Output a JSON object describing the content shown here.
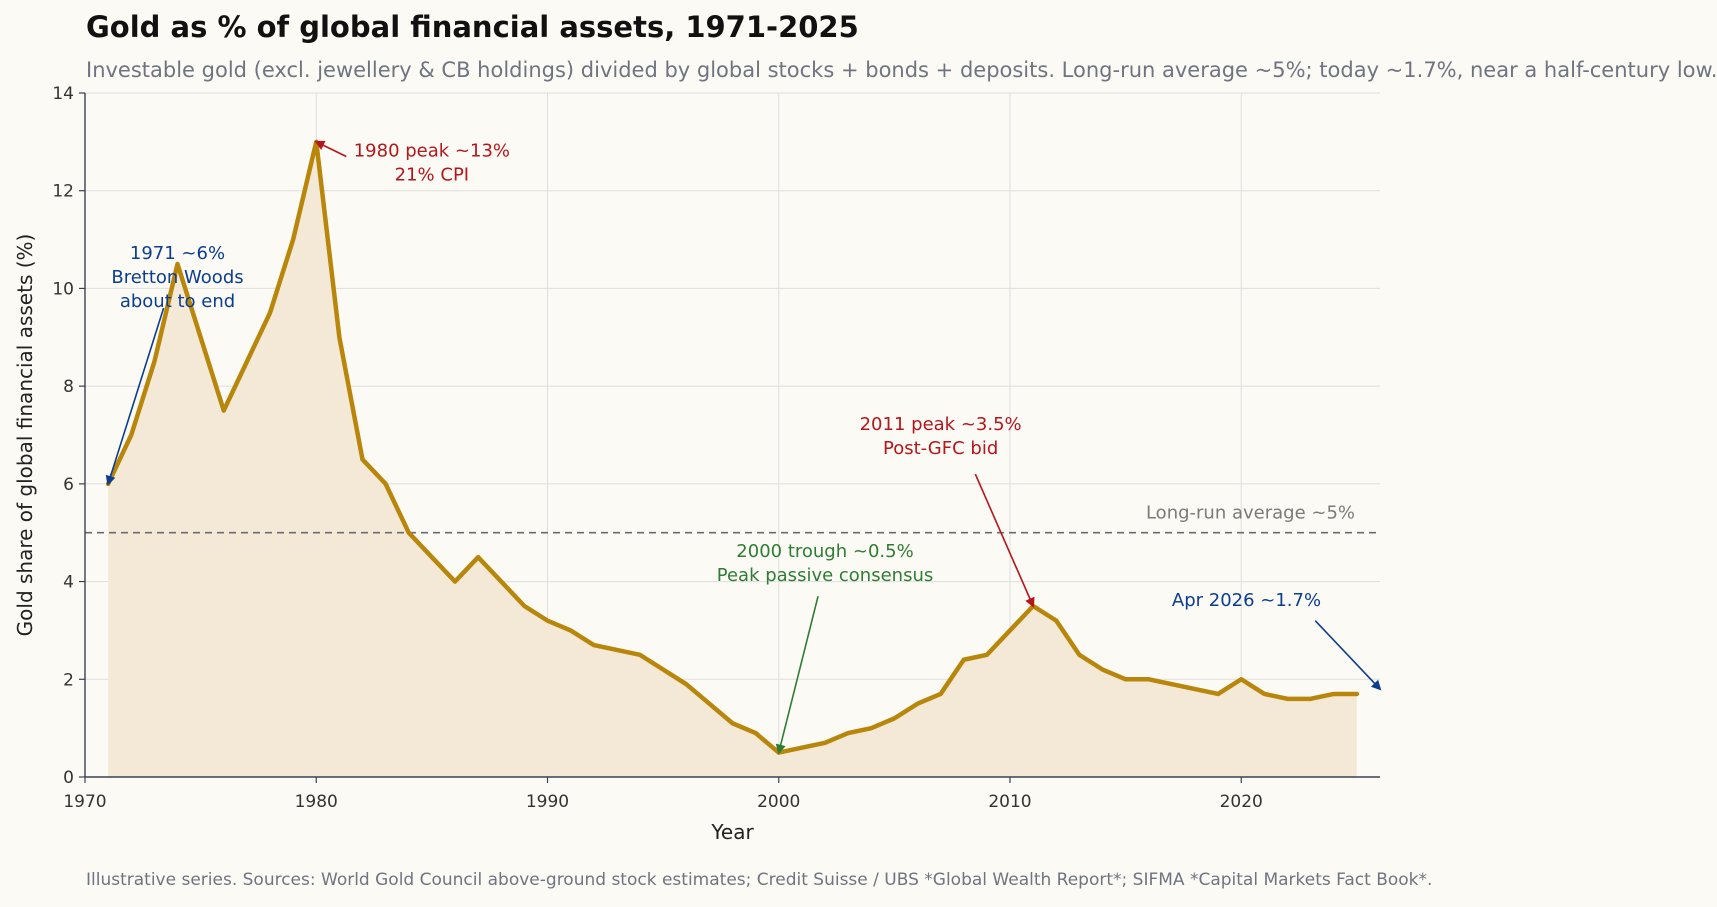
{
  "header": {
    "title": "Gold as % of global financial assets, 1971-2025",
    "subtitle": "Investable gold (excl. jewellery & CB holdings) divided by global stocks + bonds + deposits. Long-run average ~5%; today ~1.7%, near a half-century low."
  },
  "footer": {
    "note": "Illustrative series. Sources: World Gold Council above-ground stock estimates; Credit Suisse / UBS *Global Wealth Report*; SIFMA *Capital Markets Fact Book*."
  },
  "colors": {
    "line": "#b8860b",
    "fill": "#f4e9d6",
    "red": "#b5161b",
    "blue": "#0b3d91",
    "green": "#2e7d32",
    "avg": "#6b6b6b",
    "grid": "#dedede"
  },
  "chart_data": {
    "type": "area",
    "title": "Gold as % of global financial assets, 1971-2025",
    "xlabel": "Year",
    "ylabel": "Gold share of global financial assets (%)",
    "xlim": [
      1970,
      2026
    ],
    "ylim": [
      0,
      14
    ],
    "xticks": [
      1970,
      1980,
      1990,
      2000,
      2010,
      2020
    ],
    "yticks": [
      0,
      2,
      4,
      6,
      8,
      10,
      12,
      14
    ],
    "grid": true,
    "x": [
      1971,
      1972,
      1973,
      1974,
      1975,
      1976,
      1977,
      1978,
      1979,
      1980,
      1981,
      1982,
      1983,
      1984,
      1985,
      1986,
      1987,
      1988,
      1989,
      1990,
      1991,
      1992,
      1993,
      1994,
      1995,
      1996,
      1997,
      1998,
      1999,
      2000,
      2001,
      2002,
      2003,
      2004,
      2005,
      2006,
      2007,
      2008,
      2009,
      2010,
      2011,
      2012,
      2013,
      2014,
      2015,
      2016,
      2017,
      2018,
      2019,
      2020,
      2021,
      2022,
      2023,
      2024,
      2025
    ],
    "y": [
      6.0,
      7.0,
      8.5,
      10.5,
      9.0,
      7.5,
      8.5,
      9.5,
      11.0,
      13.0,
      9.0,
      6.5,
      6.0,
      5.0,
      4.5,
      4.0,
      4.5,
      4.0,
      3.5,
      3.2,
      3.0,
      2.7,
      2.6,
      2.5,
      2.2,
      1.9,
      1.5,
      1.1,
      0.9,
      0.5,
      0.6,
      0.7,
      0.9,
      1.0,
      1.2,
      1.5,
      1.7,
      2.4,
      2.5,
      3.0,
      3.5,
      3.2,
      2.5,
      2.2,
      2.0,
      2.0,
      1.9,
      1.8,
      1.7,
      2.0,
      1.7,
      1.6,
      1.6,
      1.7,
      1.7
    ],
    "reference_line": {
      "y": 5,
      "label": "Long-run average ~5%"
    },
    "annotations": [
      {
        "id": "1971",
        "lines": [
          "1971 ~6%",
          "Bretton Woods",
          "about to end"
        ],
        "color": "blue",
        "text_x": 1974,
        "text_y": 10.6,
        "point": [
          1971,
          6.0
        ],
        "arrow_from": [
          1973.4,
          9.6
        ]
      },
      {
        "id": "1980",
        "lines": [
          "1980 peak ~13%",
          "21% CPI"
        ],
        "color": "red",
        "text_x": 1985,
        "text_y": 12.7,
        "point": [
          1980,
          13.0
        ],
        "arrow_from": [
          1981.3,
          12.7
        ]
      },
      {
        "id": "2000",
        "lines": [
          "2000 trough ~0.5%",
          "Peak passive consensus"
        ],
        "color": "green",
        "text_x": 2002,
        "text_y": 4.5,
        "point": [
          2000,
          0.5
        ],
        "arrow_from": [
          2001.7,
          3.7
        ]
      },
      {
        "id": "2011",
        "lines": [
          "2011 peak ~3.5%",
          "Post-GFC bid"
        ],
        "color": "red",
        "text_x": 2007,
        "text_y": 7.1,
        "point": [
          2011,
          3.5
        ],
        "arrow_from": [
          2008.5,
          6.2
        ]
      },
      {
        "id": "2026",
        "lines": [
          "Apr 2026 ~1.7%"
        ],
        "color": "blue",
        "text_x": 2017,
        "text_y": 3.5,
        "point": [
          2026,
          1.8
        ],
        "arrow_from": [
          2023.2,
          3.2
        ],
        "text_anchor": "start"
      }
    ]
  }
}
